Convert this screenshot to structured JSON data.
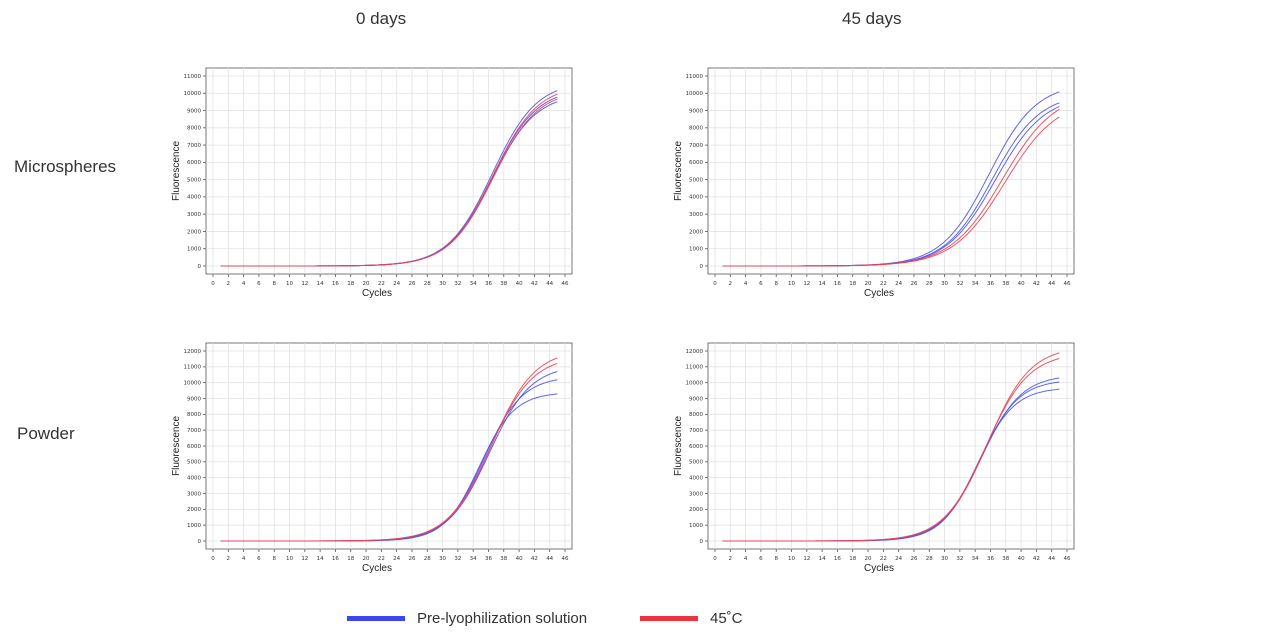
{
  "columns": [
    "0 days",
    "45 days"
  ],
  "rows": [
    "Microspheres",
    "Powder"
  ],
  "legend": [
    {
      "label": "Pre-lyophilization solution",
      "color": "#3b45f0"
    },
    {
      "label": "45˚C",
      "color": "#ee3340"
    }
  ],
  "colors": {
    "blue": "#4a55ee",
    "red": "#e84455",
    "grid": "#e2e2e2",
    "axis": "#555555"
  },
  "chart_data": [
    {
      "type": "line",
      "panel": "0 days / Microspheres",
      "xlabel": "Cycles",
      "ylabel": "Fluorescence",
      "xlim": [
        0,
        46
      ],
      "ylim": [
        0,
        11000
      ],
      "xticks": [
        0,
        2,
        4,
        6,
        8,
        10,
        12,
        14,
        16,
        18,
        20,
        22,
        24,
        26,
        28,
        30,
        32,
        34,
        36,
        38,
        40,
        42,
        44,
        46
      ],
      "yticks": [
        0,
        1000,
        2000,
        3000,
        4000,
        5000,
        6000,
        7000,
        8000,
        9000,
        10000,
        11000
      ],
      "x_range": [
        1,
        45
      ],
      "grid": true,
      "series": [
        {
          "group": "Pre-lyophilization solution",
          "color": "blue",
          "plateau": 10700,
          "midpoint": 36.5,
          "slope": 2.9
        },
        {
          "group": "Pre-lyophilization solution",
          "color": "blue",
          "plateau": 10300,
          "midpoint": 36.5,
          "slope": 2.9
        },
        {
          "group": "Pre-lyophilization solution",
          "color": "blue",
          "plateau": 10000,
          "midpoint": 36.4,
          "slope": 2.9
        },
        {
          "group": "45˚C",
          "color": "red",
          "plateau": 10500,
          "midpoint": 36.6,
          "slope": 2.9
        },
        {
          "group": "45˚C",
          "color": "red",
          "plateau": 10200,
          "midpoint": 36.6,
          "slope": 2.9
        }
      ]
    },
    {
      "type": "line",
      "panel": "45 days / Microspheres",
      "xlabel": "Cycles",
      "ylabel": "Fluorescence",
      "xlim": [
        0,
        46
      ],
      "ylim": [
        0,
        11000
      ],
      "xticks": [
        0,
        2,
        4,
        6,
        8,
        10,
        12,
        14,
        16,
        18,
        20,
        22,
        24,
        26,
        28,
        30,
        32,
        34,
        36,
        38,
        40,
        42,
        44,
        46
      ],
      "yticks": [
        0,
        1000,
        2000,
        3000,
        4000,
        5000,
        6000,
        7000,
        8000,
        9000,
        10000,
        11000
      ],
      "x_range": [
        1,
        45
      ],
      "grid": true,
      "series": [
        {
          "group": "Pre-lyophilization solution",
          "color": "blue",
          "plateau": 10600,
          "midpoint": 35.8,
          "slope": 3.1
        },
        {
          "group": "Pre-lyophilization solution",
          "color": "blue",
          "plateau": 10000,
          "midpoint": 36.2,
          "slope": 3.1
        },
        {
          "group": "Pre-lyophilization solution",
          "color": "blue",
          "plateau": 9900,
          "midpoint": 36.6,
          "slope": 3.2
        },
        {
          "group": "45˚C",
          "color": "red",
          "plateau": 10100,
          "midpoint": 37.6,
          "slope": 3.4
        },
        {
          "group": "45˚C",
          "color": "red",
          "plateau": 9700,
          "midpoint": 37.9,
          "slope": 3.4
        }
      ]
    },
    {
      "type": "line",
      "panel": "0 days / Powder",
      "xlabel": "Cycles",
      "ylabel": "Fluorescence",
      "xlim": [
        0,
        46
      ],
      "ylim": [
        0,
        12000
      ],
      "xticks": [
        0,
        2,
        4,
        6,
        8,
        10,
        12,
        14,
        16,
        18,
        20,
        22,
        24,
        26,
        28,
        30,
        32,
        34,
        36,
        38,
        40,
        42,
        44,
        46
      ],
      "yticks": [
        0,
        1000,
        2000,
        3000,
        4000,
        5000,
        6000,
        7000,
        8000,
        9000,
        10000,
        11000,
        12000
      ],
      "x_range": [
        1,
        45
      ],
      "grid": true,
      "series": [
        {
          "group": "Pre-lyophilization solution",
          "color": "blue",
          "plateau": 9400,
          "midpoint": 34.8,
          "slope": 2.3
        },
        {
          "group": "Pre-lyophilization solution",
          "color": "blue",
          "plateau": 10400,
          "midpoint": 35.4,
          "slope": 2.5
        },
        {
          "group": "Pre-lyophilization solution",
          "color": "blue",
          "plateau": 11100,
          "midpoint": 36.1,
          "slope": 2.7
        },
        {
          "group": "45˚C",
          "color": "red",
          "plateau": 11700,
          "midpoint": 36.2,
          "slope": 2.8
        },
        {
          "group": "45˚C",
          "color": "red",
          "plateau": 12100,
          "midpoint": 36.4,
          "slope": 2.8
        }
      ]
    },
    {
      "type": "line",
      "panel": "45 days / Powder",
      "xlabel": "Cycles",
      "ylabel": "Fluorescence",
      "xlim": [
        0,
        46
      ],
      "ylim": [
        0,
        12000
      ],
      "xticks": [
        0,
        2,
        4,
        6,
        8,
        10,
        12,
        14,
        16,
        18,
        20,
        22,
        24,
        26,
        28,
        30,
        32,
        34,
        36,
        38,
        40,
        42,
        44,
        46
      ],
      "yticks": [
        0,
        1000,
        2000,
        3000,
        4000,
        5000,
        6000,
        7000,
        8000,
        9000,
        10000,
        11000,
        12000
      ],
      "x_range": [
        1,
        45
      ],
      "grid": true,
      "series": [
        {
          "group": "Pre-lyophilization solution",
          "color": "blue",
          "plateau": 9700,
          "midpoint": 34.3,
          "slope": 2.4
        },
        {
          "group": "Pre-lyophilization solution",
          "color": "blue",
          "plateau": 10200,
          "midpoint": 34.6,
          "slope": 2.5
        },
        {
          "group": "Pre-lyophilization solution",
          "color": "blue",
          "plateau": 10500,
          "midpoint": 34.8,
          "slope": 2.6
        },
        {
          "group": "45˚C",
          "color": "red",
          "plateau": 11900,
          "midpoint": 35.4,
          "slope": 2.8
        },
        {
          "group": "45˚C",
          "color": "red",
          "plateau": 12300,
          "midpoint": 35.6,
          "slope": 2.8
        }
      ]
    }
  ]
}
